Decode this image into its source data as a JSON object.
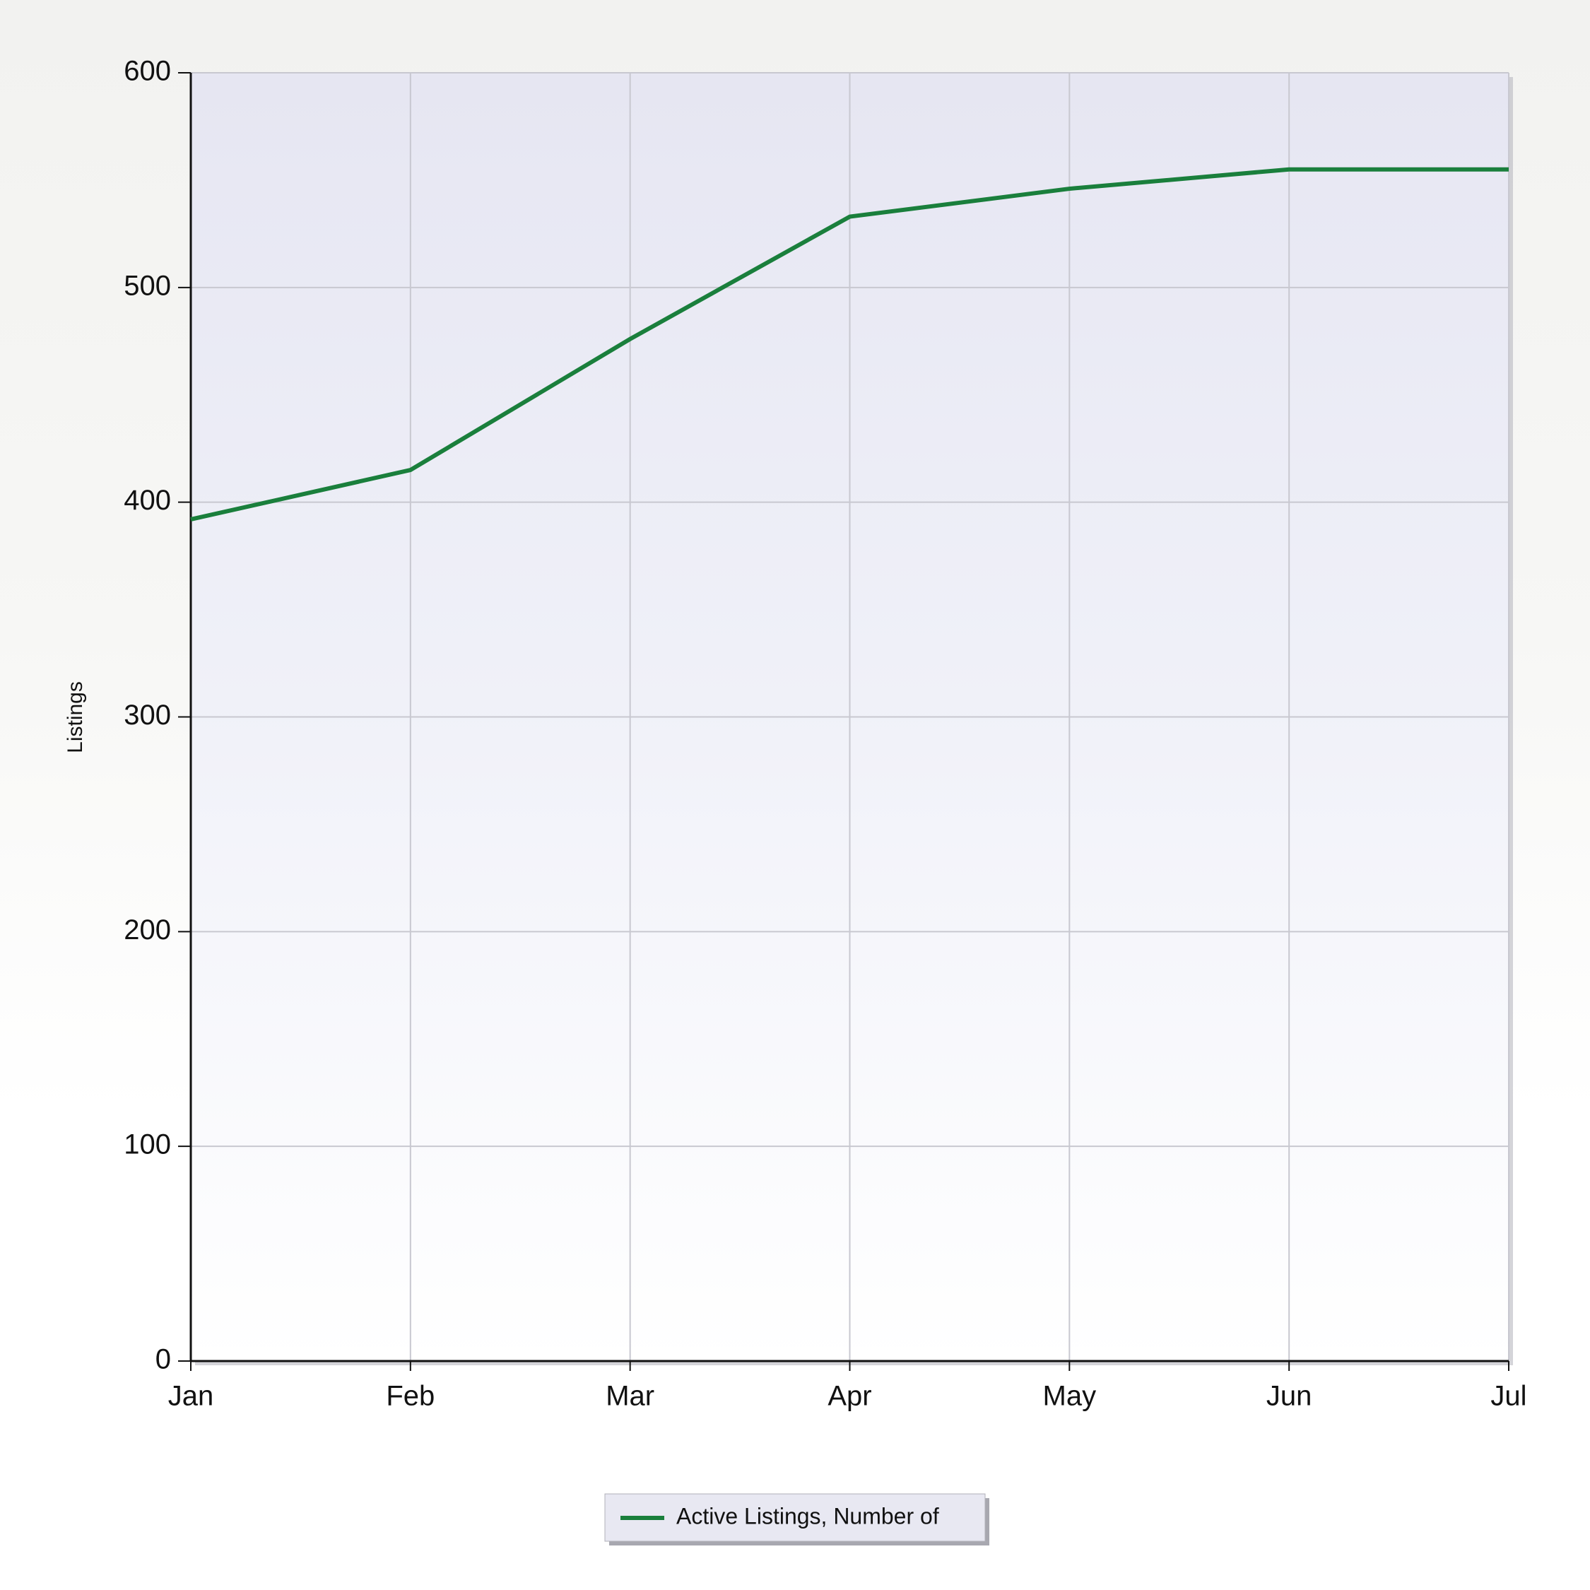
{
  "chart_data": {
    "type": "line",
    "y_label": "Listings",
    "categories": [
      "Jan",
      "Feb",
      "Mar",
      "Apr",
      "May",
      "Jun",
      "Jul"
    ],
    "series": [
      {
        "name": "Active Listings, Number of",
        "color": "#1a7f3c",
        "values": [
          392,
          415,
          476,
          533,
          546,
          555,
          555
        ]
      }
    ],
    "ylim": [
      0,
      600
    ],
    "yticks": [
      0,
      100,
      200,
      300,
      400,
      500,
      600
    ],
    "grid": true,
    "legend": "bottom"
  }
}
